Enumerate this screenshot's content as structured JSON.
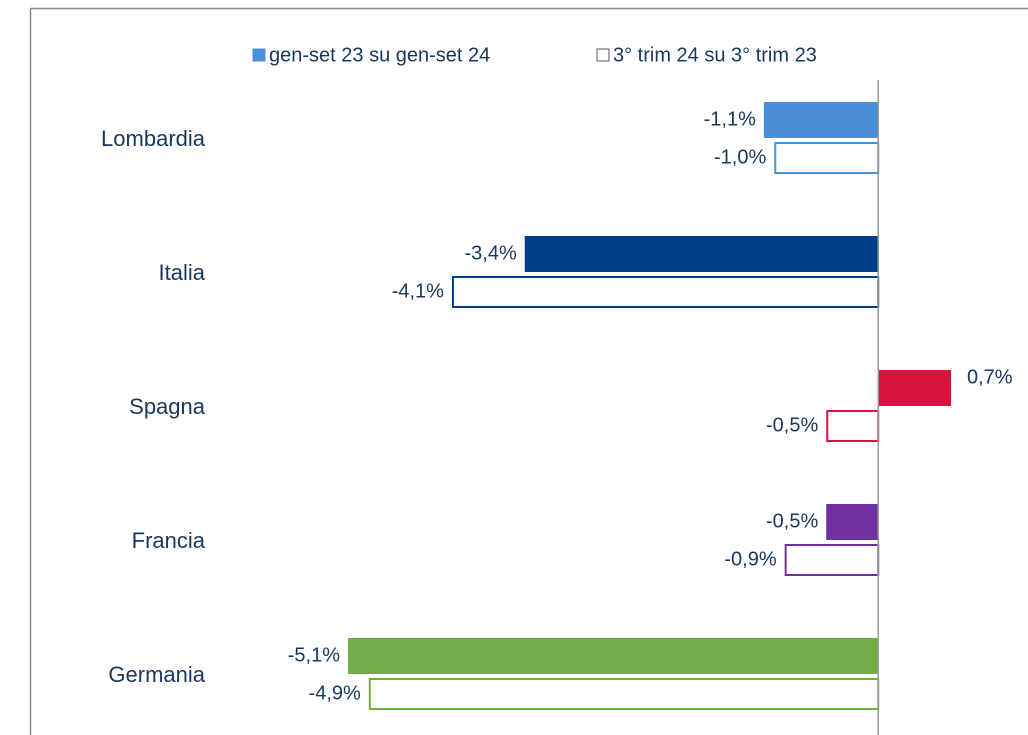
{
  "chart_data": {
    "type": "hbar",
    "categories": [
      "Lombardia",
      "Italia",
      "Spagna",
      "Francia",
      "Germania"
    ],
    "series": [
      {
        "name": "gen-set 23 su gen-set 24",
        "color": "#4a90d9",
        "style": "filled",
        "colors": [
          "#4a90d9",
          "#003f87",
          "#d9133f",
          "#7030a0",
          "#70ad47"
        ],
        "values": [
          -1.1,
          -3.4,
          0.7,
          -0.5,
          -5.1
        ],
        "value_labels": [
          "-1,1%",
          "-3,4%",
          "0,7%",
          "-0,5%",
          "-5,1%"
        ]
      },
      {
        "name": "3° trim 24 su 3° trim 23",
        "color": "#ffffff",
        "style": "outline",
        "colors": [
          "#4a90d9",
          "#003f87",
          "#d9133f",
          "#7030a0",
          "#70ad47"
        ],
        "values": [
          -1.0,
          -4.1,
          -0.5,
          -0.9,
          -4.9
        ],
        "value_labels": [
          "-1,0%",
          "-4,1%",
          "-0,5%",
          "-0,9%",
          "-4,9%"
        ]
      }
    ]
  }
}
